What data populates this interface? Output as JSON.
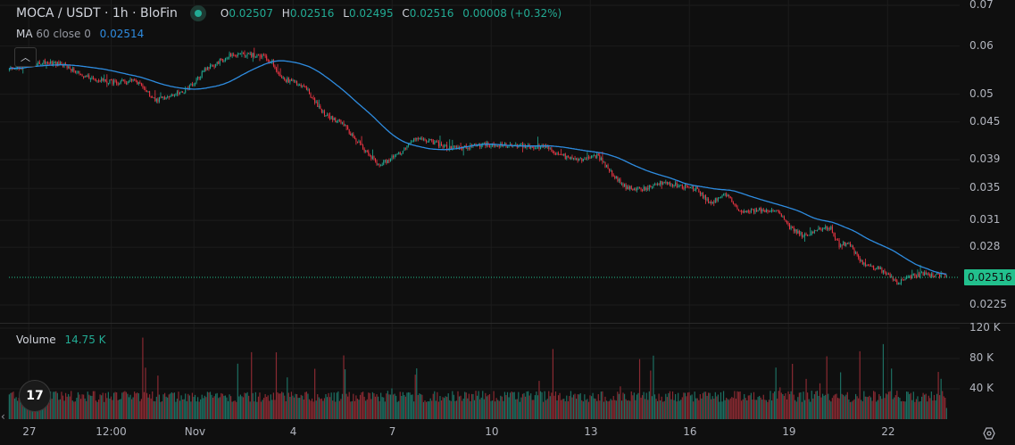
{
  "header": {
    "symbol_title": "MOCA / USDT · 1h · BloFin",
    "status": "market-open",
    "ohlc": [
      {
        "key": "O",
        "value": "0.02507"
      },
      {
        "key": "H",
        "value": "0.02516"
      },
      {
        "key": "L",
        "value": "0.02495"
      },
      {
        "key": "C",
        "value": "0.02516"
      }
    ],
    "change": "0.00008 (+0.32%)"
  },
  "ma_indicator": {
    "name": "MA",
    "params": "60 close 0",
    "value": "0.02514"
  },
  "volume_indicator": {
    "name": "Volume",
    "value": "14.75 K"
  },
  "current_price_tag": "0.02516",
  "colors": {
    "up": "#22ab94",
    "down": "#f23645",
    "ma": "#2e8ce0",
    "price_tag": "#22c08d",
    "background": "#0f0f0f"
  },
  "chart_data": {
    "type": "candlestick",
    "interval": "1h",
    "y_scale": "log",
    "ylim": [
      0.0215,
      0.0705
    ],
    "xlim_days_from_oct27": [
      -0.6,
      28.1
    ],
    "price_ticks": [
      "0.07",
      "0.06",
      "0.05",
      "0.045",
      "0.039",
      "0.035",
      "0.031",
      "0.028",
      "0.0225"
    ],
    "price_tick_values": [
      0.07,
      0.06,
      0.05,
      0.045,
      0.039,
      0.035,
      0.031,
      0.028,
      0.0225
    ],
    "volume_ticks": [
      "120 K",
      "80 K",
      "40 K"
    ],
    "volume_tick_values": [
      120000,
      80000,
      40000
    ],
    "time_ticks": [
      {
        "label": "27",
        "day": 0
      },
      {
        "label": "12:00",
        "day": 2.5
      },
      {
        "label": "Nov",
        "day": 5
      },
      {
        "label": "4",
        "day": 8
      },
      {
        "label": "7",
        "day": 11
      },
      {
        "label": "10",
        "day": 14
      },
      {
        "label": "13",
        "day": 17
      },
      {
        "label": "16",
        "day": 20
      },
      {
        "label": "19",
        "day": 23
      },
      {
        "label": "22",
        "day": 26
      }
    ],
    "close_path": [
      [
        -0.59,
        0.0549
      ],
      [
        0.35,
        0.0564
      ],
      [
        1.03,
        0.056
      ],
      [
        1.84,
        0.0531
      ],
      [
        2.65,
        0.0523
      ],
      [
        3.19,
        0.0527
      ],
      [
        3.86,
        0.0489
      ],
      [
        4.81,
        0.051
      ],
      [
        5.35,
        0.0549
      ],
      [
        6.16,
        0.0583
      ],
      [
        6.97,
        0.058
      ],
      [
        7.38,
        0.0564
      ],
      [
        7.65,
        0.0531
      ],
      [
        8.32,
        0.0518
      ],
      [
        8.86,
        0.0468
      ],
      [
        9.54,
        0.0445
      ],
      [
        10.08,
        0.0409
      ],
      [
        10.62,
        0.0382
      ],
      [
        11.3,
        0.0402
      ],
      [
        11.7,
        0.0423
      ],
      [
        12.11,
        0.0419
      ],
      [
        12.65,
        0.0409
      ],
      [
        13.19,
        0.0409
      ],
      [
        13.86,
        0.0413
      ],
      [
        14.81,
        0.0412
      ],
      [
        15.62,
        0.0409
      ],
      [
        16.03,
        0.0399
      ],
      [
        16.57,
        0.0389
      ],
      [
        17.24,
        0.0396
      ],
      [
        17.65,
        0.037
      ],
      [
        18.05,
        0.0352
      ],
      [
        18.59,
        0.0349
      ],
      [
        19.14,
        0.0357
      ],
      [
        19.68,
        0.0354
      ],
      [
        20.22,
        0.0349
      ],
      [
        20.62,
        0.0331
      ],
      [
        21.16,
        0.0342
      ],
      [
        21.57,
        0.032
      ],
      [
        22.11,
        0.0323
      ],
      [
        22.65,
        0.032
      ],
      [
        23.05,
        0.0302
      ],
      [
        23.46,
        0.0292
      ],
      [
        23.86,
        0.0299
      ],
      [
        24.27,
        0.0302
      ],
      [
        24.54,
        0.0282
      ],
      [
        24.81,
        0.0285
      ],
      [
        25.22,
        0.0264
      ],
      [
        25.76,
        0.0258
      ],
      [
        26.3,
        0.0244
      ],
      [
        26.7,
        0.0251
      ],
      [
        27.11,
        0.0253
      ],
      [
        27.78,
        0.02516
      ]
    ],
    "last_candle": {
      "open": 0.02507,
      "high": 0.02516,
      "low": 0.02495,
      "close": 0.02516,
      "volume": 14750
    },
    "ma_period": 60,
    "typical_volume": 30000,
    "max_volume_spike": 110000
  }
}
